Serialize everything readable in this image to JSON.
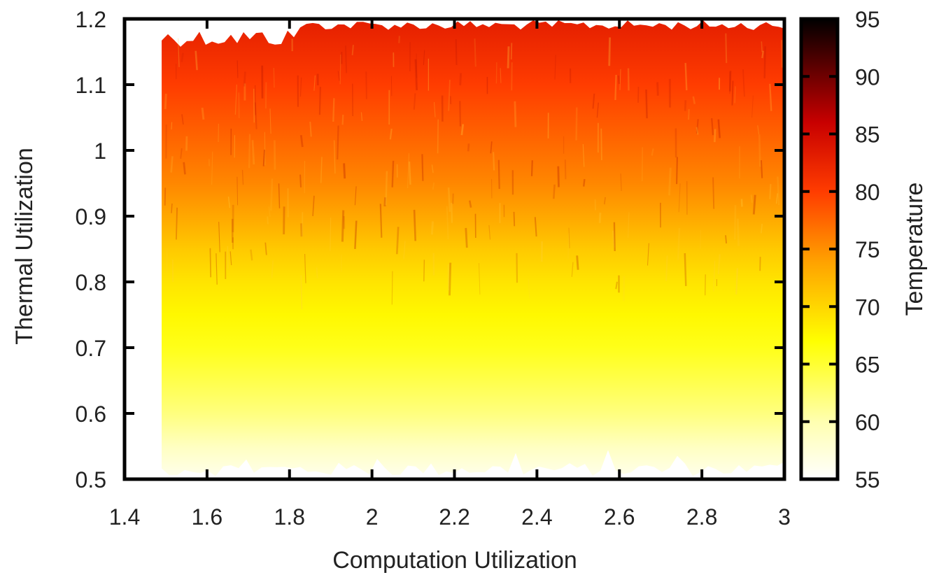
{
  "chart_data": {
    "type": "heatmap",
    "title": "",
    "xlabel": "Computation Utilization",
    "ylabel": "Thermal Utilization",
    "colorbar_label": "Temperature",
    "xlim": [
      1.4,
      3.0
    ],
    "ylim": [
      0.5,
      1.2
    ],
    "x_ticks": [
      "1.4",
      "1.6",
      "1.8",
      "2",
      "2.2",
      "2.4",
      "2.6",
      "2.8",
      "3"
    ],
    "y_ticks": [
      "0.5",
      "0.6",
      "0.7",
      "0.8",
      "0.9",
      "1",
      "1.1",
      "1.2"
    ],
    "colorbar_range": [
      55,
      95
    ],
    "colorbar_ticks": [
      "55",
      "60",
      "65",
      "70",
      "75",
      "80",
      "85",
      "90",
      "95"
    ],
    "colormap": [
      {
        "value": 55,
        "color": "#ffffff"
      },
      {
        "value": 60,
        "color": "#ffffb0"
      },
      {
        "value": 67,
        "color": "#ffff00"
      },
      {
        "value": 74,
        "color": "#ffa000"
      },
      {
        "value": 80,
        "color": "#ff3c00"
      },
      {
        "value": 86,
        "color": "#c80000"
      },
      {
        "value": 95,
        "color": "#000000"
      }
    ],
    "data_region": {
      "x_min": 1.49,
      "x_max": 3.0,
      "y_min": 0.5,
      "y_max": 1.2
    },
    "temperature_profile": [
      {
        "y": 0.5,
        "value": 56
      },
      {
        "y": 0.55,
        "value": 59
      },
      {
        "y": 0.6,
        "value": 62
      },
      {
        "y": 0.65,
        "value": 64
      },
      {
        "y": 0.7,
        "value": 66
      },
      {
        "y": 0.75,
        "value": 67.5
      },
      {
        "y": 0.8,
        "value": 69
      },
      {
        "y": 0.85,
        "value": 71
      },
      {
        "y": 0.9,
        "value": 73.5
      },
      {
        "y": 0.95,
        "value": 75.5
      },
      {
        "y": 1.0,
        "value": 77
      },
      {
        "y": 1.05,
        "value": 78.5
      },
      {
        "y": 1.1,
        "value": 80
      },
      {
        "y": 1.15,
        "value": 81.5
      },
      {
        "y": 1.2,
        "value": 83
      }
    ],
    "grid": false
  }
}
